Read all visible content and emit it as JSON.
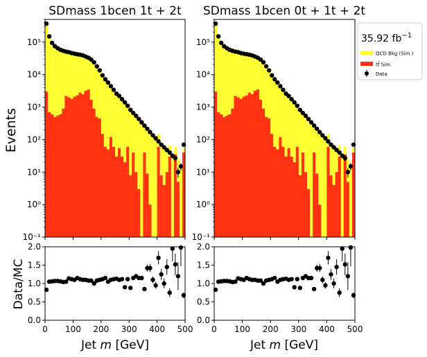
{
  "figure": {
    "ylabel_main": "Events",
    "ylabel_ratio": "Data/MC",
    "lumi": "35.92 fb",
    "lumi_exp": "−1"
  },
  "legend": [
    {
      "key": "qcd",
      "label": "QCD Bkg (Sim.)",
      "color": "#ffff33"
    },
    {
      "key": "tt",
      "label": "t̄t Sim.",
      "label_tt": "tt̄",
      "label_rest": " Sim.",
      "color": "#ff3311"
    },
    {
      "key": "data",
      "label": "Data",
      "color": "#000000"
    }
  ],
  "colors": {
    "qcd": "#ffff33",
    "tt": "#ff3311",
    "data": "#000000"
  },
  "chart_data": [
    {
      "type": "bar",
      "title": "SDmass  1bcen 1t + 2t",
      "xlabel": "Jet m [GeV]",
      "ylabel": "Events",
      "x_ticks": [
        "0",
        "100",
        "200",
        "300",
        "400",
        "500"
      ],
      "y_ticks": [
        "10⁻¹",
        "10⁰",
        "10¹",
        "10²",
        "10³",
        "10⁴",
        "10⁵"
      ],
      "ratio_ticks": [
        "0.0",
        "0.5",
        "1.0",
        "1.5",
        "2.0"
      ],
      "xlim": [
        0,
        500
      ],
      "ylim_log": [
        0.1,
        500000
      ],
      "ratio_ylim": [
        0,
        2
      ],
      "bin_width": 10,
      "series": [
        {
          "name": "t̄t Sim.",
          "values": [
            3000,
            700,
            600,
            500,
            550,
            600,
            900,
            2200,
            2000,
            1800,
            2100,
            2300,
            2800,
            2500,
            3200,
            3500,
            1700,
            900,
            500,
            450,
            150,
            60,
            50,
            120,
            60,
            30,
            55,
            30,
            20,
            60,
            8,
            40,
            10,
            3,
            0.1,
            40,
            9,
            1,
            0.1,
            0.1,
            60,
            8,
            4,
            10,
            30,
            0.1,
            35,
            5,
            0.1,
            40
          ]
        },
        {
          "name": "QCD Bkg (Sim.)",
          "values": [
            350000,
            160000,
            90000,
            70000,
            60000,
            55000,
            52000,
            50000,
            48000,
            45000,
            43000,
            42000,
            40000,
            38000,
            35000,
            32000,
            28000,
            23000,
            17000,
            13000,
            9000,
            7000,
            5500,
            4200,
            3300,
            2500,
            2100,
            1700,
            1350,
            1050,
            800,
            650,
            520,
            420,
            330,
            260,
            210,
            160,
            130,
            105,
            85,
            68,
            56,
            46,
            38,
            31,
            26,
            21,
            17,
            15
          ]
        },
        {
          "name": "Data",
          "values": [
            370000,
            150000,
            95000,
            75000,
            65000,
            58000,
            54000,
            51000,
            49000,
            46000,
            44000,
            42500,
            41000,
            39000,
            36000,
            33000,
            29000,
            24000,
            18000,
            13500,
            9500,
            7200,
            5700,
            4400,
            3400,
            2600,
            2200,
            1750,
            1400,
            1100,
            820,
            660,
            540,
            430,
            340,
            270,
            215,
            170,
            135,
            110,
            88,
            70,
            58,
            48,
            40,
            32,
            27,
            10,
            15,
            70
          ]
        },
        {
          "name": "Data/MC",
          "values": [
            0.83,
            1.05,
            1.06,
            1.07,
            1.07,
            1.06,
            1.04,
            1.05,
            1.14,
            1.12,
            1.1,
            1.15,
            1.12,
            1.1,
            1.1,
            1.08,
            1.08,
            1.0,
            1.08,
            1.1,
            1.12,
            1.15,
            1.05,
            1.1,
            1.12,
            1.13,
            1.1,
            1.12,
            0.9,
            1.12,
            0.88,
            1.15,
            1.2,
            1.15,
            1.15,
            0.85,
            1.42,
            1.42,
            1.1,
            0.95,
            1.7,
            1.25,
            1.0,
            1.45,
            0.75,
            1.95,
            1.52,
            1.2,
            1.98,
            0.68
          ]
        }
      ]
    },
    {
      "type": "bar",
      "title": "SDmass  1bcen 0t + 1t + 2t",
      "xlabel": "Jet m [GeV]",
      "ylabel": "",
      "x_ticks": [
        "0",
        "100",
        "200",
        "300",
        "400",
        "500"
      ],
      "y_ticks": [
        "10⁻¹",
        "10⁰",
        "10¹",
        "10²",
        "10³",
        "10⁴",
        "10⁵"
      ],
      "ratio_ticks": [
        "0.0",
        "0.5",
        "1.0",
        "1.5",
        "2.0"
      ],
      "xlim": [
        0,
        500
      ],
      "ylim_log": [
        0.1,
        500000
      ],
      "ratio_ylim": [
        0,
        2
      ],
      "bin_width": 10,
      "series": [
        {
          "name": "t̄t Sim.",
          "values": [
            3000,
            700,
            600,
            500,
            550,
            600,
            900,
            2200,
            2000,
            1800,
            2100,
            2300,
            2800,
            2500,
            3200,
            3500,
            1700,
            900,
            500,
            450,
            150,
            60,
            50,
            120,
            60,
            30,
            55,
            30,
            20,
            60,
            8,
            40,
            10,
            3,
            0.1,
            40,
            9,
            1,
            0.1,
            0.1,
            60,
            8,
            4,
            10,
            30,
            0.1,
            35,
            5,
            0.1,
            40
          ]
        },
        {
          "name": "QCD Bkg (Sim.)",
          "values": [
            350000,
            160000,
            90000,
            70000,
            60000,
            55000,
            52000,
            50000,
            48000,
            45000,
            43000,
            42000,
            40000,
            38000,
            35000,
            32000,
            28000,
            23000,
            17000,
            13000,
            9000,
            7000,
            5500,
            4200,
            3300,
            2500,
            2100,
            1700,
            1350,
            1050,
            800,
            650,
            520,
            420,
            330,
            260,
            210,
            160,
            130,
            105,
            85,
            68,
            56,
            46,
            38,
            31,
            26,
            21,
            17,
            15
          ]
        },
        {
          "name": "Data",
          "values": [
            370000,
            150000,
            95000,
            75000,
            65000,
            58000,
            54000,
            51000,
            49000,
            46000,
            44000,
            42500,
            41000,
            39000,
            36000,
            33000,
            29000,
            24000,
            18000,
            13500,
            9500,
            7200,
            5700,
            4400,
            3400,
            2600,
            2200,
            1750,
            1400,
            1100,
            820,
            660,
            540,
            430,
            340,
            270,
            215,
            170,
            135,
            110,
            88,
            70,
            58,
            48,
            40,
            32,
            27,
            10,
            15,
            70
          ]
        },
        {
          "name": "Data/MC",
          "values": [
            0.83,
            1.05,
            1.06,
            1.07,
            1.07,
            1.06,
            1.04,
            1.05,
            1.14,
            1.12,
            1.1,
            1.15,
            1.12,
            1.1,
            1.1,
            1.08,
            1.08,
            1.0,
            1.08,
            1.1,
            1.12,
            1.15,
            1.05,
            1.1,
            1.12,
            1.13,
            1.1,
            1.12,
            0.9,
            1.12,
            0.88,
            1.15,
            1.2,
            1.15,
            1.15,
            0.85,
            1.42,
            1.42,
            1.1,
            0.95,
            1.7,
            1.25,
            1.0,
            1.45,
            0.75,
            1.95,
            1.52,
            1.2,
            1.98,
            0.68
          ]
        }
      ]
    }
  ]
}
